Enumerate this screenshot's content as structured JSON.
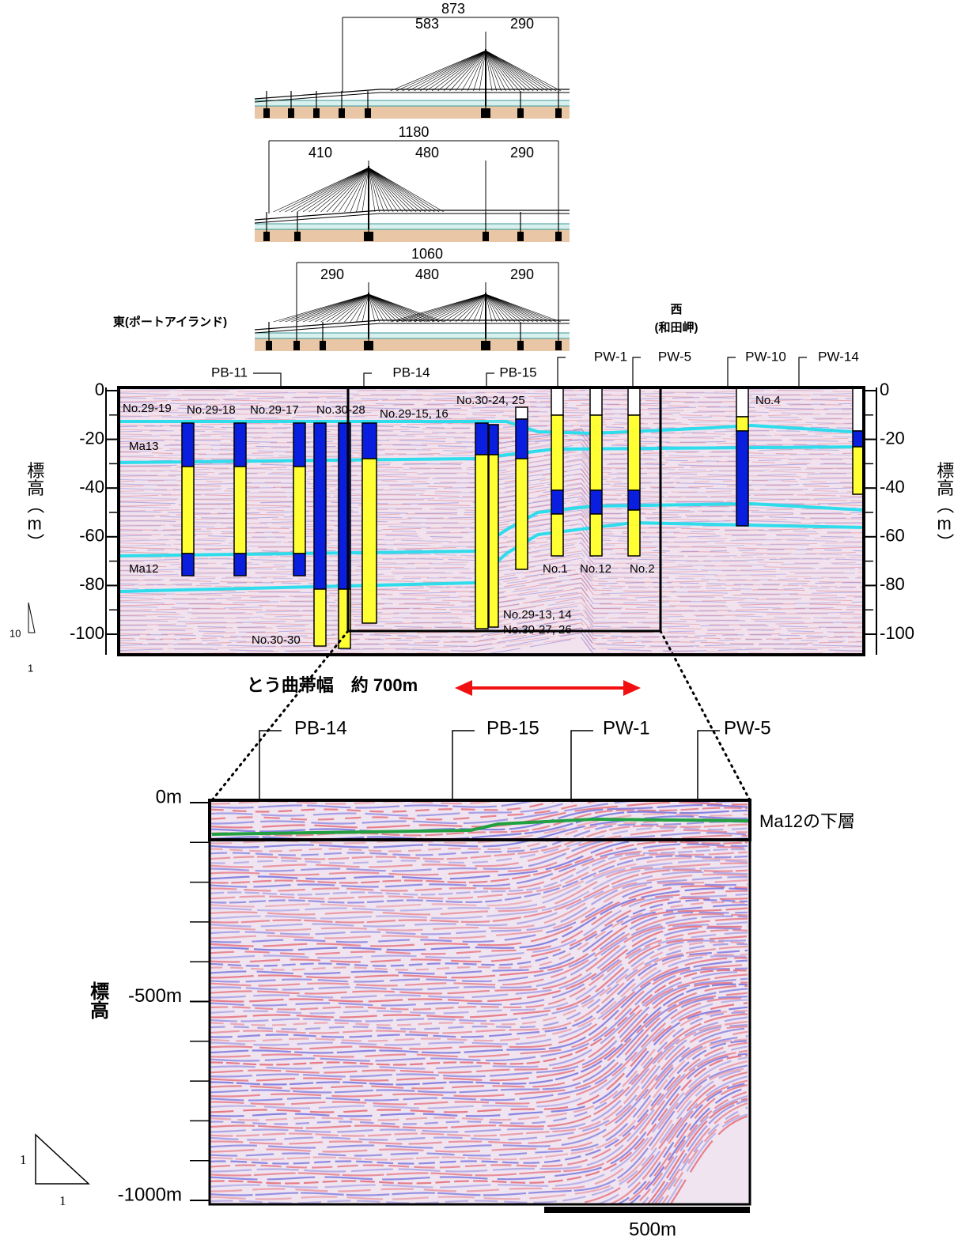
{
  "bridges": [
    {
      "total": 873,
      "spans": [
        583,
        290
      ]
    },
    {
      "total": 1180,
      "spans": [
        410,
        480,
        290
      ]
    },
    {
      "total": 1060,
      "spans": [
        290,
        480,
        290
      ]
    }
  ],
  "east_label": "東(ポートアイランド)",
  "west_label": [
    "西",
    "(和田岬)"
  ],
  "upper_section": {
    "y_label": "標高（m）",
    "ylim": [
      -108,
      0
    ],
    "yticks": [
      0,
      -20,
      -40,
      -60,
      -80,
      -100
    ],
    "wells": [
      "PB-11",
      "PB-14",
      "PB-15",
      "PW-1",
      "PW-5",
      "PW-10",
      "PW-14"
    ],
    "borings": [
      "No.29-19",
      "No.29-18",
      "No.29-17",
      "No.30-28",
      "No.29-15, 16",
      "No.30-24, 25",
      "No.4",
      "No.1",
      "No.12",
      "No.2",
      "No.30-30",
      "No.29-13, 14",
      "No.30-27, 26"
    ],
    "layers": [
      "Ma13",
      "Ma12"
    ],
    "slope_scale": [
      10,
      1
    ]
  },
  "flexure_label": "とう曲帯幅　約 700m",
  "lower_section": {
    "y_label": "標高",
    "ylim": [
      -1000,
      0
    ],
    "yticks": [
      {
        "value": 0,
        "label": "0m"
      },
      {
        "value": -500,
        "label": "-500m"
      },
      {
        "value": -1000,
        "label": "-1000m"
      }
    ],
    "wells": [
      "PB-14",
      "PB-15",
      "PW-1",
      "PW-5"
    ],
    "layer_label": "Ma12の下層",
    "scale_bar": "500m",
    "slope_scale": [
      1,
      1
    ]
  }
}
